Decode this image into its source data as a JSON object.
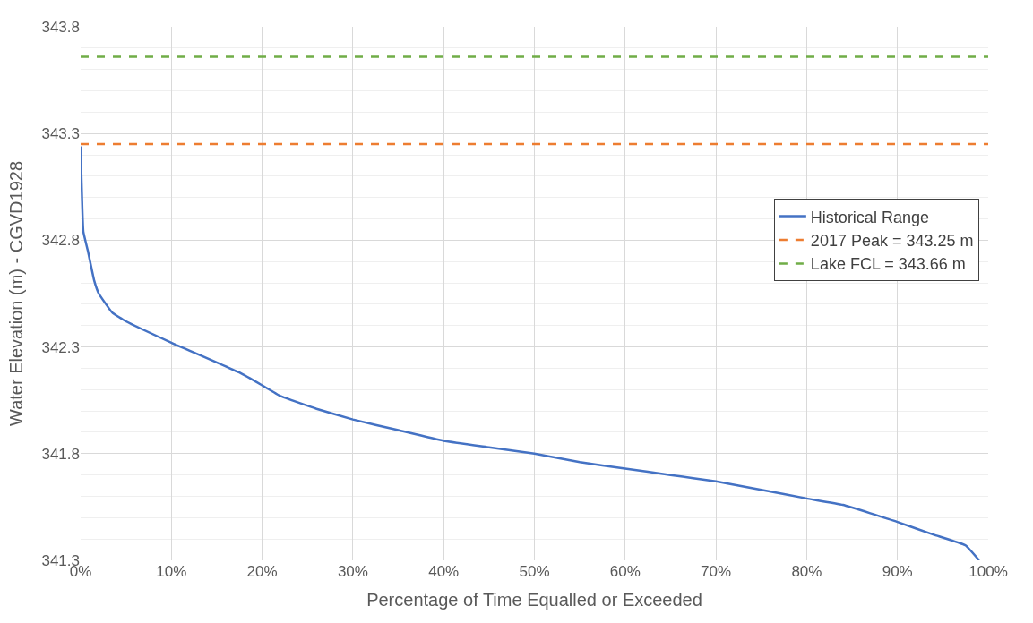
{
  "chart_data": {
    "type": "line",
    "xlabel": "Percentage of Time Equalled or Exceeded",
    "ylabel": "Water Elevation (m) - CGVD1928",
    "x": [
      0,
      0.3,
      0.8,
      1.5,
      2,
      3.5,
      5,
      10,
      17.5,
      20,
      22,
      26,
      30,
      35,
      40,
      45,
      50,
      55,
      60,
      65,
      70,
      75,
      80,
      84,
      90,
      94,
      97.5,
      99
    ],
    "series": [
      {
        "name": "Historical Range",
        "color": "#4472c4",
        "values": [
          343.24,
          342.84,
          342.75,
          342.61,
          342.55,
          342.46,
          342.42,
          342.32,
          342.18,
          342.12,
          342.07,
          342.01,
          341.96,
          341.91,
          341.86,
          341.83,
          341.8,
          341.76,
          341.73,
          341.7,
          341.67,
          341.63,
          341.59,
          341.56,
          341.48,
          341.42,
          341.37,
          341.3
        ]
      }
    ],
    "ref_lines": [
      {
        "axis": "y",
        "value": 343.25,
        "label": "2017 Peak = 343.25 m",
        "color": "#ed7d31",
        "line_style": "dashed"
      },
      {
        "axis": "y",
        "value": 343.66,
        "label": "Lake FCL = 343.66 m",
        "color": "#70ad47",
        "line_style": "dashed"
      }
    ],
    "xlim": [
      0,
      100
    ],
    "xticks": [
      {
        "value": 0,
        "label": "0%"
      },
      {
        "value": 10,
        "label": "10%"
      },
      {
        "value": 20,
        "label": "20%"
      },
      {
        "value": 30,
        "label": "30%"
      },
      {
        "value": 40,
        "label": "40%"
      },
      {
        "value": 50,
        "label": "50%"
      },
      {
        "value": 60,
        "label": "60%"
      },
      {
        "value": 70,
        "label": "70%"
      },
      {
        "value": 80,
        "label": "80%"
      },
      {
        "value": 90,
        "label": "90%"
      },
      {
        "value": 100,
        "label": "100%"
      }
    ],
    "ylim": [
      341.3,
      343.8
    ],
    "yticks": [
      341.3,
      341.8,
      342.3,
      342.8,
      343.3,
      343.8
    ],
    "grid": true,
    "legend": "right",
    "marker": "none",
    "line_style": "solid"
  }
}
